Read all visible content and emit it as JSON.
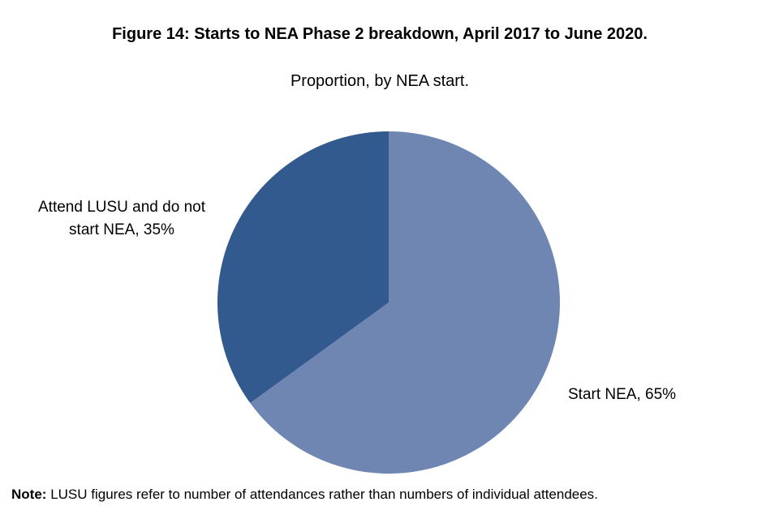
{
  "chart_data": {
    "type": "pie",
    "title": "Figure 14: Starts to NEA Phase 2 breakdown, April 2017 to June 2020.",
    "subtitle": "Proportion, by NEA start.",
    "categories": [
      "Start NEA",
      "Attend LUSU and do not start NEA"
    ],
    "values": [
      65,
      35
    ],
    "value_labels": [
      "Start NEA, 65%",
      "Attend LUSU and do not start NEA, 35%"
    ],
    "colors": [
      "#7086b2",
      "#335a8e"
    ],
    "note": {
      "label": "Note:",
      "text": "LUSU figures refer to number of attendances rather than numbers of individual attendees."
    }
  }
}
